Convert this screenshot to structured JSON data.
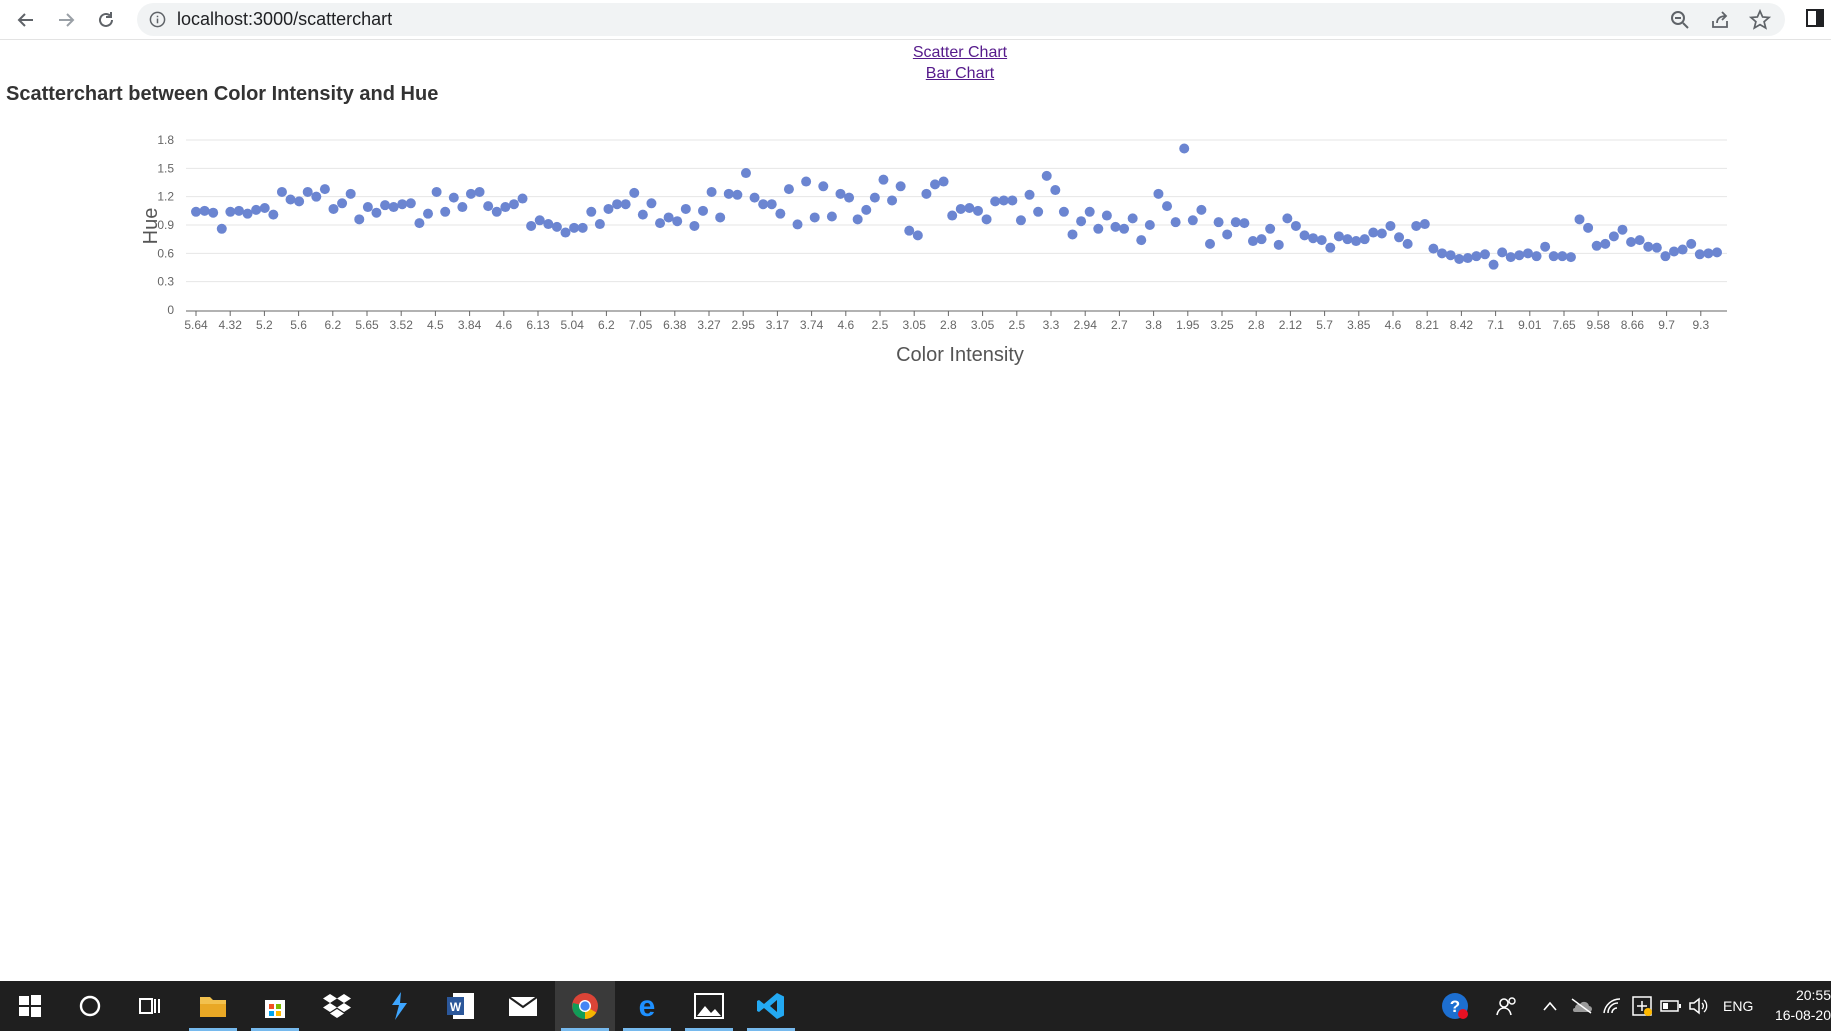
{
  "browser": {
    "url": "localhost:3000/scatterchart"
  },
  "links": {
    "scatter": "Scatter Chart",
    "bar": "Bar Chart"
  },
  "page": {
    "heading": "Scatterchart between Color Intensity and Hue"
  },
  "chart_data": {
    "type": "scatter",
    "title": "",
    "xlabel": "Color Intensity",
    "ylabel": "Hue",
    "ylim": [
      0,
      1.8
    ],
    "yticks": [
      "0",
      "0.3",
      "0.6",
      "0.9",
      "1.2",
      "1.5",
      "1.8"
    ],
    "grid": true,
    "point_color": "#6b85d1",
    "x_tick_labels": [
      "5.64",
      "4.32",
      "5.2",
      "5.6",
      "6.2",
      "5.65",
      "3.52",
      "4.5",
      "3.84",
      "4.6",
      "6.13",
      "5.04",
      "6.2",
      "7.05",
      "6.38",
      "3.27",
      "2.95",
      "3.17",
      "3.74",
      "4.6",
      "2.5",
      "3.05",
      "2.8",
      "3.05",
      "2.5",
      "3.3",
      "2.94",
      "2.7",
      "3.8",
      "1.95",
      "3.25",
      "2.8",
      "2.12",
      "5.7",
      "3.85",
      "4.6",
      "8.21",
      "8.42",
      "7.1",
      "9.01",
      "7.65",
      "9.58",
      "8.66",
      "9.7",
      "9.3"
    ],
    "y": [
      1.04,
      1.05,
      1.03,
      0.86,
      1.04,
      1.05,
      1.02,
      1.06,
      1.08,
      1.01,
      1.25,
      1.17,
      1.15,
      1.25,
      1.2,
      1.28,
      1.07,
      1.13,
      1.23,
      0.96,
      1.09,
      1.03,
      1.11,
      1.09,
      1.12,
      1.13,
      0.92,
      1.02,
      1.25,
      1.04,
      1.19,
      1.09,
      1.23,
      1.25,
      1.1,
      1.04,
      1.09,
      1.12,
      1.18,
      0.89,
      0.95,
      0.91,
      0.88,
      0.82,
      0.87,
      0.87,
      1.04,
      0.91,
      1.07,
      1.12,
      1.12,
      1.24,
      1.01,
      1.13,
      0.92,
      0.98,
      0.94,
      1.07,
      0.89,
      1.05,
      1.25,
      0.98,
      1.23,
      1.22,
      1.45,
      1.19,
      1.12,
      1.12,
      1.02,
      1.28,
      0.906,
      1.36,
      0.98,
      1.31,
      0.99,
      1.23,
      1.19,
      0.96,
      1.06,
      1.19,
      1.38,
      1.16,
      1.31,
      0.84,
      0.79,
      1.23,
      1.33,
      1.36,
      1.0,
      1.07,
      1.08,
      1.05,
      0.96,
      1.15,
      1.16,
      1.16,
      0.95,
      1.22,
      1.04,
      1.42,
      1.27,
      1.04,
      0.8,
      0.94,
      1.04,
      0.86,
      1.0,
      0.88,
      0.86,
      0.97,
      0.74,
      0.9,
      1.23,
      1.1,
      0.93,
      1.71,
      0.95,
      1.06,
      0.7,
      0.93,
      0.8,
      0.93,
      0.92,
      0.73,
      0.75,
      0.86,
      0.69,
      0.97,
      0.89,
      0.79,
      0.76,
      0.74,
      0.66,
      0.78,
      0.75,
      0.73,
      0.75,
      0.82,
      0.81,
      0.89,
      0.77,
      0.7,
      0.89,
      0.91,
      0.65,
      0.6,
      0.58,
      0.54,
      0.55,
      0.57,
      0.59,
      0.48,
      0.61,
      0.56,
      0.58,
      0.6,
      0.57,
      0.67,
      0.57,
      0.57,
      0.56,
      0.96,
      0.87,
      0.68,
      0.7,
      0.78,
      0.85,
      0.72,
      0.74,
      0.67,
      0.66,
      0.57,
      0.62,
      0.64,
      0.7,
      0.59,
      0.6,
      0.61
    ]
  },
  "taskbar": {
    "clock_time": "20:55",
    "clock_date": "16-08-20",
    "language": "ENG"
  }
}
